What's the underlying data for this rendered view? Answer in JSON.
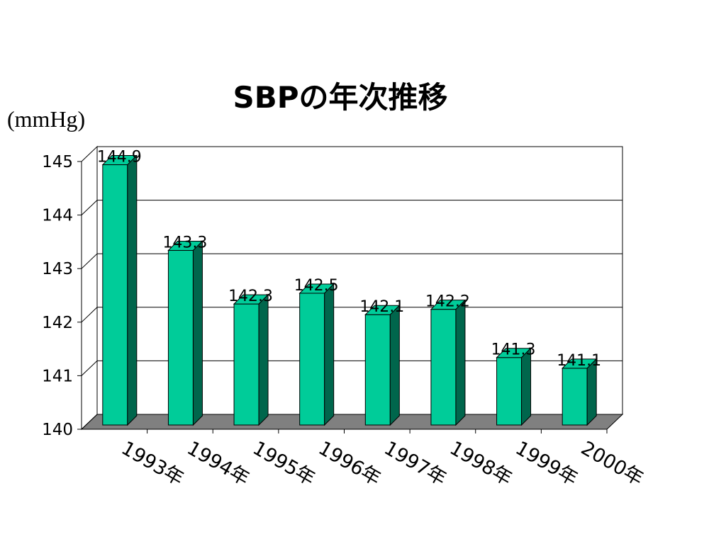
{
  "chart_data": {
    "type": "bar",
    "title": "SBPの年次推移",
    "ylabel": "(mmHg)",
    "xlabel": "",
    "categories": [
      "1993年",
      "1994年",
      "1995年",
      "1996年",
      "1997年",
      "1998年",
      "1999年",
      "2000年"
    ],
    "values": [
      144.9,
      143.3,
      142.3,
      142.5,
      142.1,
      142.2,
      141.3,
      141.1
    ],
    "value_labels": [
      "144.9",
      "143.3",
      "142.3",
      "142.5",
      "142.1",
      "142.2",
      "141.3",
      "141.1"
    ],
    "ylim": [
      140,
      145
    ],
    "yticks": [
      "140",
      "141",
      "142",
      "143",
      "144",
      "145"
    ],
    "grid": true,
    "legend": "none",
    "bar_color": "#00CC99",
    "bar_side_color": "#00664C",
    "floor_color": "#808080"
  }
}
